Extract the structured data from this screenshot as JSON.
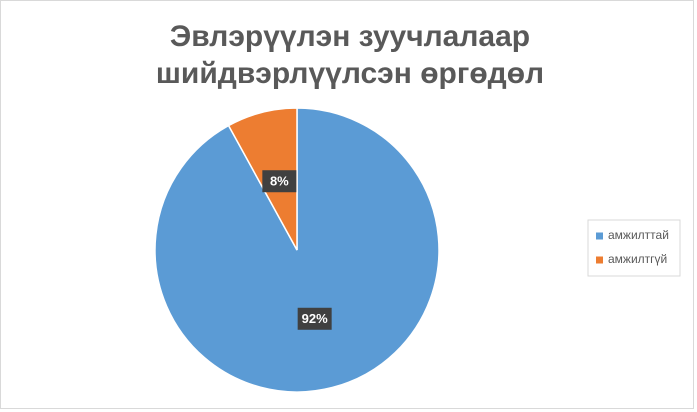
{
  "chart_data": {
    "type": "pie",
    "title": "Эвлэрүүлэн зуучлалаар шийдвэрлүүлсэн өргөдөл",
    "categories": [
      "амжилттай",
      "амжилтгүй"
    ],
    "values": [
      92,
      8
    ],
    "value_labels": [
      "92%",
      "8%"
    ],
    "colors": [
      "#5b9bd5",
      "#ed7d31"
    ],
    "legend": "right"
  }
}
